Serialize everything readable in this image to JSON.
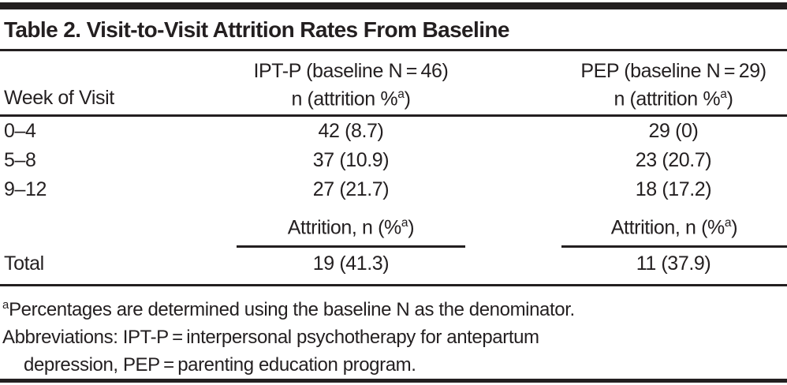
{
  "title": "Table 2. Visit-to-Visit Attrition Rates From Baseline",
  "header": {
    "week_label": "Week of Visit",
    "ipt_line1": "IPT-P (baseline N = 46)",
    "pep_line1": "PEP (baseline N = 29)",
    "sub_pre": "n (attrition %",
    "sub_sup": "a",
    "sub_post": ")"
  },
  "rows": [
    {
      "week": "0–4",
      "ipt": "42 (8.7)",
      "pep": "29 (0)"
    },
    {
      "week": "5–8",
      "ipt": "37 (10.9)",
      "pep": "23 (20.7)"
    },
    {
      "week": "9–12",
      "ipt": "27 (21.7)",
      "pep": "18 (17.2)"
    }
  ],
  "attrition_header": {
    "pre": "Attrition, n (%",
    "sup": "a",
    "post": ")"
  },
  "total": {
    "label": "Total",
    "ipt": "19 (41.3)",
    "pep": "11 (37.9)"
  },
  "footnotes": {
    "note_sup": "a",
    "note_text": "Percentages are determined using the baseline N as the denominator.",
    "abbrev_line1": "Abbreviations: IPT-P = interpersonal psychotherapy for antepartum",
    "abbrev_line2": "depression, PEP = parenting education program."
  },
  "colors": {
    "text": "#231f20",
    "rule": "#231f20",
    "background": "#ffffff"
  },
  "chart_data": {
    "type": "table",
    "title": "Table 2. Visit-to-Visit Attrition Rates From Baseline",
    "columns": [
      "Week of Visit",
      "IPT-P (baseline N = 46) n (attrition %a)",
      "PEP (baseline N = 29) n (attrition %a)"
    ],
    "rows": [
      [
        "0–4",
        "42 (8.7)",
        "29 (0)"
      ],
      [
        "5–8",
        "37 (10.9)",
        "23 (20.7)"
      ],
      [
        "9–12",
        "27 (21.7)",
        "18 (17.2)"
      ],
      [
        "Total",
        "19 (41.3)",
        "11 (37.9)"
      ]
    ]
  }
}
